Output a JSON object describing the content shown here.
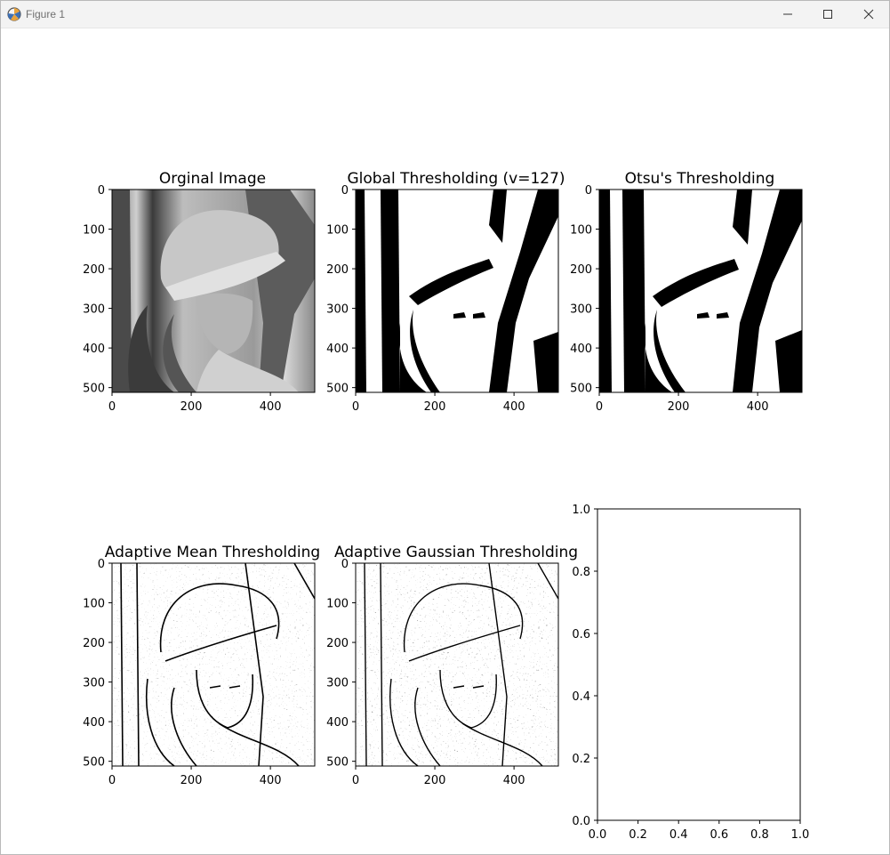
{
  "window": {
    "title": "Figure 1",
    "icons": [
      "matplotlib-logo-icon",
      "minimize-icon",
      "maximize-icon",
      "close-icon"
    ]
  },
  "panels": [
    {
      "title": "Orginal Image",
      "style": "grayscale"
    },
    {
      "title": "Global Thresholding (v=127)",
      "style": "global"
    },
    {
      "title": "Otsu's Thresholding",
      "style": "otsu"
    },
    {
      "title": "Adaptive Mean Thresholding",
      "style": "adaptive"
    },
    {
      "title": "Adaptive Gaussian Thresholding",
      "style": "adaptive"
    }
  ],
  "image_axes": {
    "x_ticks": [
      "0",
      "200",
      "400"
    ],
    "y_ticks": [
      "0",
      "100",
      "200",
      "300",
      "400",
      "500"
    ]
  },
  "empty_axes": {
    "x_ticks": [
      "0.0",
      "0.2",
      "0.4",
      "0.6",
      "0.8",
      "1.0"
    ],
    "y_ticks": [
      "0.0",
      "0.2",
      "0.4",
      "0.6",
      "0.8",
      "1.0"
    ]
  },
  "colors": {
    "titlebar": "#f3f3f3",
    "title_text": "#707070",
    "axis": "#000000"
  }
}
